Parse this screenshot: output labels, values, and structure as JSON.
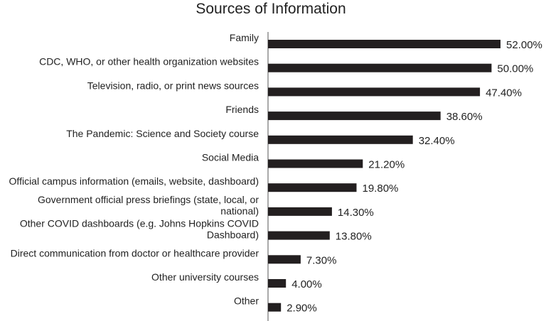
{
  "chart_data": {
    "type": "bar",
    "orientation": "horizontal",
    "title": "Sources of Information",
    "xlabel": "",
    "ylabel": "",
    "xlim": [
      0,
      60
    ],
    "grid": false,
    "legend": "none",
    "bar_color": "#231f20",
    "categories": [
      [
        "Family"
      ],
      [
        "CDC, WHO, or other health organization websites"
      ],
      [
        "Television, radio, or print news sources"
      ],
      [
        "Friends"
      ],
      [
        "The Pandemic: Science and Society course"
      ],
      [
        "Social Media"
      ],
      [
        "Official campus information (emails, website, dashboard)"
      ],
      [
        "Government official press briefings (state, local, or",
        "national)"
      ],
      [
        "Other COVID dashboards (e.g. Johns Hopkins COVID",
        "Dashboard)"
      ],
      [
        "Direct communication from doctor or healthcare provider"
      ],
      [
        "Other university courses"
      ],
      [
        "Other"
      ]
    ],
    "values": [
      52.0,
      50.0,
      47.4,
      38.6,
      32.4,
      21.2,
      19.8,
      14.3,
      13.8,
      7.3,
      4.0,
      2.9
    ],
    "data_labels": [
      "52.00%",
      "50.00%",
      "47.40%",
      "38.60%",
      "32.40%",
      "21.20%",
      "19.80%",
      "14.30%",
      "13.80%",
      "7.30%",
      "4.00%",
      "2.90%"
    ]
  }
}
